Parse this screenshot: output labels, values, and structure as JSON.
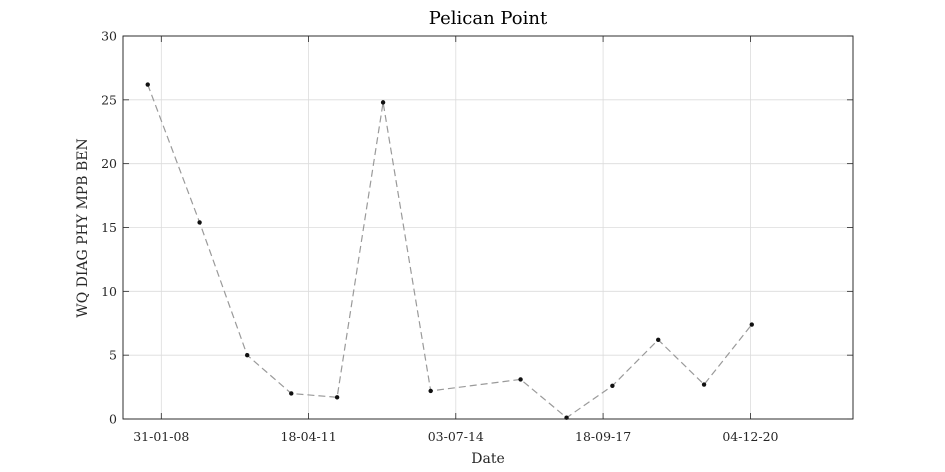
{
  "chart_data": {
    "type": "line",
    "title": "Pelican Point",
    "xlabel": "Date",
    "ylabel": "WQ DIAG PHY MPB BEN",
    "xlim": [
      "2007-04-01",
      "2023-03-01"
    ],
    "ylim": [
      0,
      30
    ],
    "yticks": [
      0,
      5,
      10,
      15,
      20,
      25,
      30
    ],
    "xticks": [
      {
        "date": "2008-01-31",
        "label": "31-01-08"
      },
      {
        "date": "2011-04-18",
        "label": "18-04-11"
      },
      {
        "date": "2014-07-03",
        "label": "03-07-14"
      },
      {
        "date": "2017-09-18",
        "label": "18-09-17"
      },
      {
        "date": "2020-12-04",
        "label": "04-12-20"
      }
    ],
    "grid": true,
    "series": [
      {
        "x": [
          "2007-10-15",
          "2008-12-01",
          "2009-12-15",
          "2010-12-01",
          "2011-12-01",
          "2012-12-01",
          "2013-12-15",
          "2015-12-01",
          "2016-12-01",
          "2017-12-01",
          "2018-12-01",
          "2019-12-01",
          "2020-12-15"
        ],
        "y": [
          26.2,
          15.4,
          5.0,
          2.0,
          1.7,
          24.8,
          2.2,
          3.1,
          0.1,
          2.6,
          6.2,
          2.7,
          7.4
        ]
      }
    ],
    "colors": {
      "line": "#9a9a9a",
      "marker": "#111111",
      "grid": "#dcdcdc",
      "axes": "#262626"
    }
  }
}
